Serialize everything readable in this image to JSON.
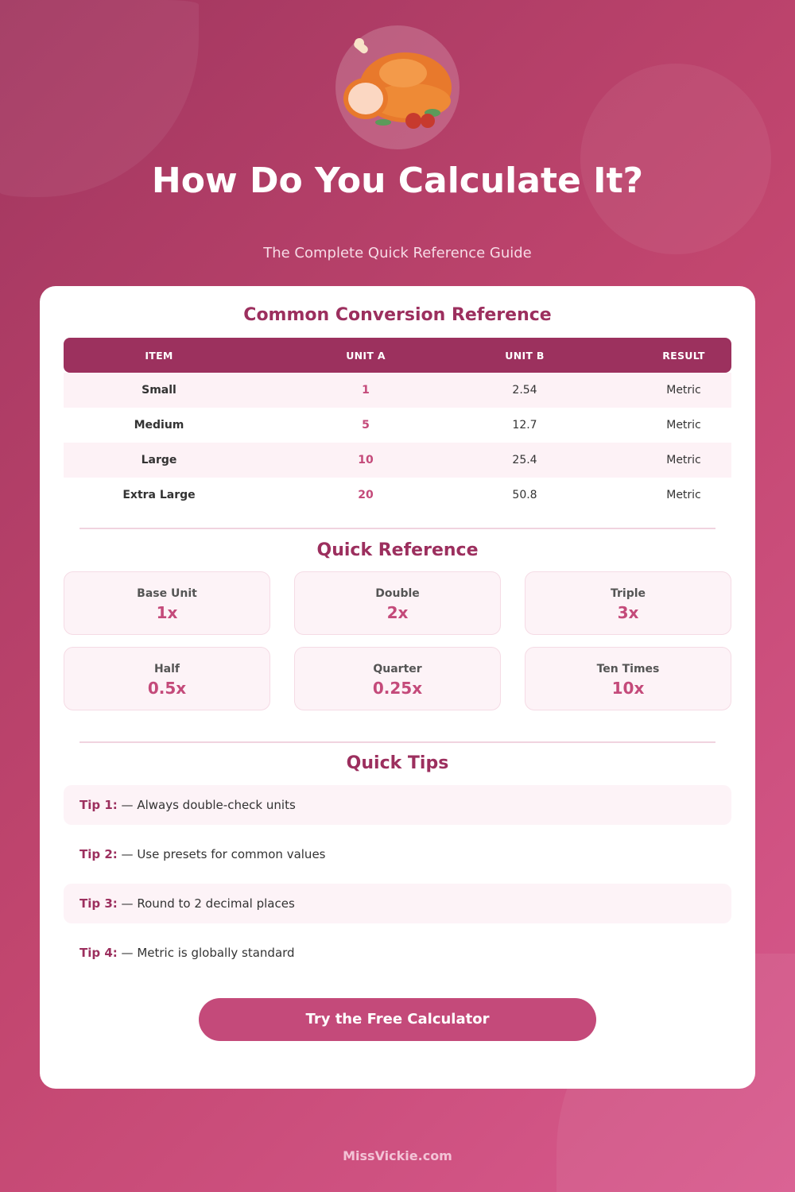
{
  "header": {
    "title": "How Do You Calculate It?",
    "subtitle": "The Complete Quick Reference Guide",
    "logo_icon": "roast-turkey-icon"
  },
  "colors": {
    "primary": "#9c315e",
    "accent": "#c44a7a",
    "background": "#c2466f"
  },
  "conversion": {
    "title": "Common Conversion Reference",
    "columns": [
      "ITEM",
      "UNIT A",
      "UNIT B",
      "RESULT"
    ],
    "rows": [
      [
        "Small",
        "1",
        "2.54",
        "Metric"
      ],
      [
        "Medium",
        "5",
        "12.7",
        "Metric"
      ],
      [
        "Large",
        "10",
        "25.4",
        "Metric"
      ],
      [
        "Extra Large",
        "20",
        "50.8",
        "Metric"
      ]
    ]
  },
  "quick_reference": {
    "title": "Quick Reference",
    "items": [
      {
        "label": "Base Unit",
        "value": "1x"
      },
      {
        "label": "Double",
        "value": "2x"
      },
      {
        "label": "Triple",
        "value": "3x"
      },
      {
        "label": "Half",
        "value": "0.5x"
      },
      {
        "label": "Quarter",
        "value": "0.25x"
      },
      {
        "label": "Ten Times",
        "value": "10x"
      }
    ]
  },
  "tips": {
    "title": "Quick Tips",
    "items": [
      {
        "label": "Tip 1:",
        "text": " — Always double-check units"
      },
      {
        "label": "Tip 2:",
        "text": " — Use presets for common values"
      },
      {
        "label": "Tip 3:",
        "text": " — Round to 2 decimal places"
      },
      {
        "label": "Tip 4:",
        "text": " — Metric is globally standard"
      }
    ]
  },
  "cta": {
    "label": "Try the Free Calculator"
  },
  "footer": {
    "text": "MissVickie.com"
  }
}
